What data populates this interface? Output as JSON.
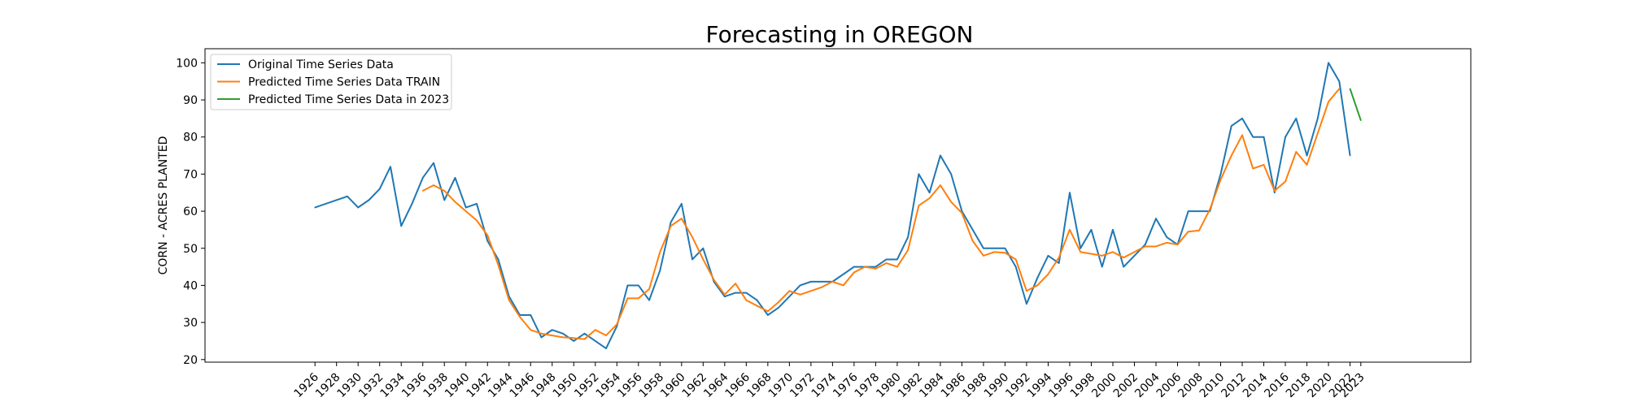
{
  "chart_data": {
    "type": "line",
    "title": "Forecasting in OREGON",
    "xlabel": "",
    "ylabel": "CORN - ACRES PLANTED",
    "xlim": [
      1915.8,
      2033.2
    ],
    "ylim": [
      19.3,
      103.8
    ],
    "yticks": [
      20,
      30,
      40,
      50,
      60,
      70,
      80,
      90,
      100
    ],
    "xticks": [
      1926,
      1928,
      1930,
      1932,
      1934,
      1936,
      1938,
      1940,
      1942,
      1944,
      1946,
      1948,
      1950,
      1952,
      1954,
      1956,
      1958,
      1960,
      1962,
      1964,
      1966,
      1968,
      1970,
      1972,
      1974,
      1976,
      1978,
      1980,
      1982,
      1984,
      1986,
      1988,
      1990,
      1992,
      1994,
      1996,
      1998,
      2000,
      2002,
      2004,
      2006,
      2008,
      2010,
      2012,
      2014,
      2016,
      2018,
      2020,
      2022,
      2023
    ],
    "grid": false,
    "legend_position": "upper-left",
    "series": [
      {
        "name": "Original Time Series Data",
        "color": "#1f77b4",
        "x": [
          1926,
          1929,
          1930,
          1931,
          1932,
          1933,
          1934,
          1935,
          1936,
          1937,
          1938,
          1939,
          1940,
          1941,
          1942,
          1943,
          1944,
          1945,
          1946,
          1947,
          1948,
          1949,
          1950,
          1951,
          1952,
          1953,
          1954,
          1955,
          1956,
          1957,
          1958,
          1959,
          1960,
          1961,
          1962,
          1963,
          1964,
          1965,
          1966,
          1967,
          1968,
          1969,
          1970,
          1971,
          1972,
          1973,
          1974,
          1975,
          1976,
          1977,
          1978,
          1979,
          1980,
          1981,
          1982,
          1983,
          1984,
          1985,
          1986,
          1987,
          1988,
          1989,
          1990,
          1991,
          1992,
          1993,
          1994,
          1995,
          1996,
          1997,
          1998,
          1999,
          2000,
          2001,
          2002,
          2003,
          2004,
          2005,
          2006,
          2007,
          2008,
          2009,
          2010,
          2011,
          2012,
          2013,
          2014,
          2015,
          2016,
          2017,
          2018,
          2019,
          2020,
          2021,
          2022
        ],
        "values": [
          61,
          64,
          61,
          63,
          66,
          72,
          56,
          62,
          69,
          73,
          63,
          69,
          61,
          62,
          52,
          47,
          37,
          32,
          32,
          26,
          28,
          27,
          25,
          27,
          25,
          23,
          29,
          40,
          40,
          36,
          44,
          57,
          62,
          47,
          50,
          41,
          37,
          38,
          38,
          36,
          32,
          34,
          37,
          40,
          41,
          41,
          41,
          43,
          45,
          45,
          45,
          47,
          47,
          53,
          70,
          65,
          75,
          70,
          60,
          55,
          50,
          50,
          50,
          45,
          35,
          42,
          48,
          46,
          65,
          50,
          55,
          45,
          55,
          45,
          48,
          51,
          58,
          53,
          51,
          60,
          60,
          60,
          70,
          83,
          85,
          80,
          80,
          65,
          80,
          85,
          75,
          85,
          100,
          95,
          75
        ]
      },
      {
        "name": "Predicted Time Series Data TRAIN",
        "color": "#ff7f0e",
        "x": [
          1936,
          1937,
          1938,
          1939,
          1940,
          1941,
          1942,
          1943,
          1944,
          1945,
          1946,
          1947,
          1948,
          1949,
          1950,
          1951,
          1952,
          1953,
          1954,
          1955,
          1956,
          1957,
          1958,
          1959,
          1960,
          1961,
          1962,
          1963,
          1964,
          1965,
          1966,
          1967,
          1968,
          1969,
          1970,
          1971,
          1972,
          1973,
          1974,
          1975,
          1976,
          1977,
          1978,
          1979,
          1980,
          1981,
          1982,
          1983,
          1984,
          1985,
          1986,
          1987,
          1988,
          1989,
          1990,
          1991,
          1992,
          1993,
          1994,
          1995,
          1996,
          1997,
          1998,
          1999,
          2000,
          2001,
          2002,
          2003,
          2004,
          2005,
          2006,
          2007,
          2008,
          2009,
          2010,
          2011,
          2012,
          2013,
          2014,
          2015,
          2016,
          2017,
          2018,
          2019,
          2020,
          2021
        ],
        "values": [
          65.5,
          67,
          65.5,
          62.5,
          60,
          57.5,
          53.5,
          45.5,
          36,
          31.5,
          28,
          27,
          26.5,
          26,
          25.8,
          25.5,
          28,
          26.5,
          29.5,
          36.5,
          36.5,
          39,
          49,
          56,
          58,
          53,
          47,
          41.5,
          37.5,
          40.5,
          36,
          34.5,
          33,
          35.5,
          38.5,
          37.5,
          38.5,
          39.5,
          41,
          40,
          43.5,
          45,
          44.5,
          46,
          45,
          49.5,
          61.5,
          63.5,
          67,
          62.5,
          59.5,
          52,
          48,
          49,
          48.8,
          47,
          38.5,
          40,
          43,
          47.5,
          55,
          49,
          48.5,
          48,
          49,
          47.5,
          49,
          50.5,
          50.5,
          51.5,
          51,
          54.5,
          54.8,
          60.5,
          68.5,
          75,
          80.5,
          71.5,
          72.5,
          65.5,
          68,
          76,
          72.5,
          81,
          89.5,
          93
        ]
      },
      {
        "name": "Predicted Time Series Data in 2023",
        "color": "#2ca02c",
        "x": [
          2022,
          2023
        ],
        "values": [
          93,
          84.5
        ]
      }
    ]
  }
}
